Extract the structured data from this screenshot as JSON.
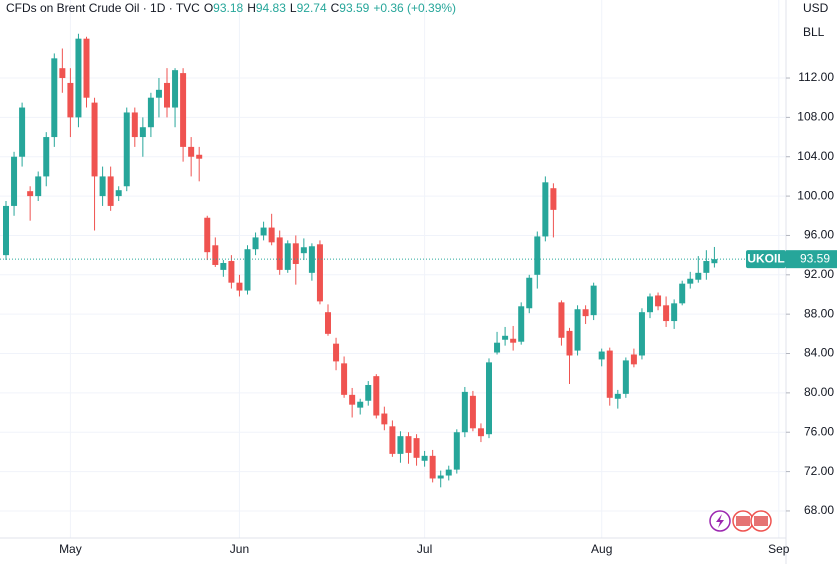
{
  "chart_data": {
    "type": "candlestick",
    "title": "CFDs on Brent Crude Oil · 1D · TVC",
    "ohlc_prefixes": [
      "O",
      "H",
      "L",
      "C"
    ],
    "change": "+0.36 (+0.39%)",
    "currency": "USD",
    "unit": "BLL",
    "symbol": "UKOIL",
    "up_color": "#26a69a",
    "down_color": "#ef5350",
    "categories": [
      null,
      null,
      null,
      null,
      null,
      null,
      null,
      null,
      "May",
      null,
      null,
      null,
      null,
      null,
      null,
      null,
      null,
      null,
      null,
      null,
      null,
      null,
      null,
      null,
      null,
      null,
      null,
      null,
      null,
      "Jun",
      null,
      null,
      null,
      null,
      null,
      null,
      null,
      null,
      null,
      null,
      null,
      null,
      null,
      null,
      null,
      null,
      null,
      null,
      null,
      null,
      null,
      null,
      "Jul",
      null,
      null,
      null,
      null,
      null,
      null,
      null,
      null,
      null,
      null,
      null,
      null,
      null,
      null,
      null,
      null,
      null,
      null,
      null,
      null,
      null,
      "Aug",
      null,
      null,
      null,
      null,
      null,
      null,
      null,
      null,
      null,
      null,
      null,
      null,
      null,
      null,
      null,
      null,
      null,
      null,
      null,
      null,
      null,
      "Sep"
    ],
    "open": [
      94,
      99,
      104,
      100.5,
      100,
      102,
      106,
      113,
      111.5,
      108,
      116,
      109.5,
      100,
      102,
      100,
      101,
      108.5,
      106,
      107,
      110,
      111.5,
      109,
      112.5,
      105,
      104.2,
      97.8,
      95,
      92.5,
      93.4,
      91.2,
      90.4,
      94.6,
      96,
      96.8,
      95.8,
      92.5,
      95.2,
      94.2,
      92.2,
      95.1,
      88.2,
      85,
      83,
      79.8,
      78.5,
      79.2,
      81.7,
      77.9,
      76.6,
      73.8,
      75.6,
      75.4,
      73.1,
      73.6,
      71.3,
      71.6,
      72.2,
      76,
      79.7,
      76.4,
      75.8,
      84.1,
      85.4,
      85.5,
      85.2,
      88.6,
      92,
      95.9,
      100.8,
      89.2,
      86.3,
      84.3,
      88.5,
      87.9,
      83.4,
      84.3,
      79.4,
      79.9,
      83.9,
      83.8,
      88.2,
      89.9,
      88.9,
      87.3,
      89.1,
      91.1,
      91.5,
      92.2,
      93.18,
      null,
      null,
      null,
      null,
      null,
      null,
      null,
      null
    ],
    "high": [
      99.5,
      104.5,
      109.5,
      101,
      102.5,
      106.5,
      114.5,
      115,
      113,
      116.5,
      116.2,
      110,
      103,
      103,
      101,
      109,
      109,
      108,
      110.5,
      112,
      113,
      113,
      113,
      106,
      105,
      98,
      95.8,
      93.5,
      94,
      92,
      95,
      96.3,
      97.4,
      98.2,
      96.5,
      95.5,
      96,
      95.7,
      95.2,
      95.5,
      89,
      85.6,
      83.7,
      80.5,
      79.4,
      81.2,
      81.9,
      78.6,
      77.2,
      76.1,
      76,
      75.8,
      74.1,
      74.2,
      72.1,
      72.6,
      76.3,
      80.6,
      80.2,
      76.9,
      83.5,
      86.2,
      86.7,
      86.8,
      89.2,
      92,
      96.4,
      102,
      101.3,
      89.4,
      86.6,
      88.9,
      88.9,
      91.2,
      84.5,
      84.6,
      80.3,
      83.6,
      84.5,
      88.6,
      90.1,
      90.2,
      89.8,
      89.5,
      91.4,
      92.3,
      93.9,
      94.5,
      94.83,
      null,
      null,
      null,
      null,
      null,
      null,
      null,
      null
    ],
    "low": [
      93.5,
      98,
      103,
      97.5,
      99.5,
      101,
      105,
      110.5,
      106,
      107,
      109,
      96.5,
      99,
      98.5,
      99.5,
      100.5,
      105,
      104,
      106,
      108,
      108,
      107,
      103.5,
      102,
      101.5,
      93.5,
      92.8,
      91.8,
      90.6,
      89.8,
      90,
      94,
      95.5,
      95,
      92,
      92.2,
      91,
      93.5,
      91.4,
      89,
      85.8,
      82.3,
      79.5,
      77.5,
      77.8,
      78.7,
      77.4,
      76.2,
      73.5,
      72.9,
      72.8,
      72.6,
      72.5,
      70.9,
      70.4,
      71.1,
      71.8,
      75.5,
      76.1,
      75,
      75.4,
      83.9,
      84.8,
      84.3,
      84.9,
      88.1,
      90.6,
      95.4,
      95.8,
      84.8,
      80.9,
      83.8,
      87,
      87.4,
      82.7,
      78.7,
      78.4,
      79.5,
      82.6,
      83.4,
      87.6,
      88.4,
      86.7,
      86.5,
      88.9,
      90.6,
      91.2,
      91.5,
      92.74,
      null,
      null,
      null,
      null,
      null,
      null,
      null,
      null
    ],
    "close": [
      99,
      104,
      109,
      100,
      102,
      106,
      114,
      112,
      108,
      116,
      110,
      102,
      102,
      99,
      100.6,
      108.5,
      106,
      107,
      110,
      110.8,
      109,
      112.8,
      105,
      104,
      103.8,
      94.3,
      93,
      93.2,
      91.2,
      90.4,
      94.6,
      95.8,
      96.8,
      95.3,
      92.5,
      95.2,
      93.1,
      94.8,
      94.9,
      89.3,
      86,
      83.2,
      79.8,
      78.8,
      79.1,
      80.8,
      77.7,
      76.8,
      73.8,
      75.6,
      73.9,
      73.4,
      73.6,
      71.3,
      71.6,
      72.2,
      76,
      80.1,
      76.4,
      75.6,
      83.1,
      85.1,
      85.8,
      85.1,
      88.8,
      91.7,
      95.9,
      101.4,
      98.6,
      85.6,
      83.8,
      88.5,
      87.8,
      90.9,
      84.2,
      79.5,
      79.9,
      83.3,
      82.9,
      88.2,
      89.8,
      88.8,
      87.3,
      89.1,
      91.1,
      91.6,
      92.2,
      93.4,
      93.59,
      null,
      null,
      null,
      null,
      null,
      null,
      null,
      null
    ],
    "ylim": [
      65.25,
      119.93
    ],
    "yticks": [
      {
        "value": 68,
        "label": "68.00"
      },
      {
        "value": 72,
        "label": "72.00"
      },
      {
        "value": 76,
        "label": "76.00"
      },
      {
        "value": 80,
        "label": "80.00"
      },
      {
        "value": 84,
        "label": "84.00"
      },
      {
        "value": 88,
        "label": "88.00"
      },
      {
        "value": 92,
        "label": "92.00"
      },
      {
        "value": 96,
        "label": "96.00"
      },
      {
        "value": 100,
        "label": "100.00"
      },
      {
        "value": 104,
        "label": "104.00"
      },
      {
        "value": 108,
        "label": "108.00"
      },
      {
        "value": 112,
        "label": "112.00"
      }
    ],
    "grid": true
  }
}
